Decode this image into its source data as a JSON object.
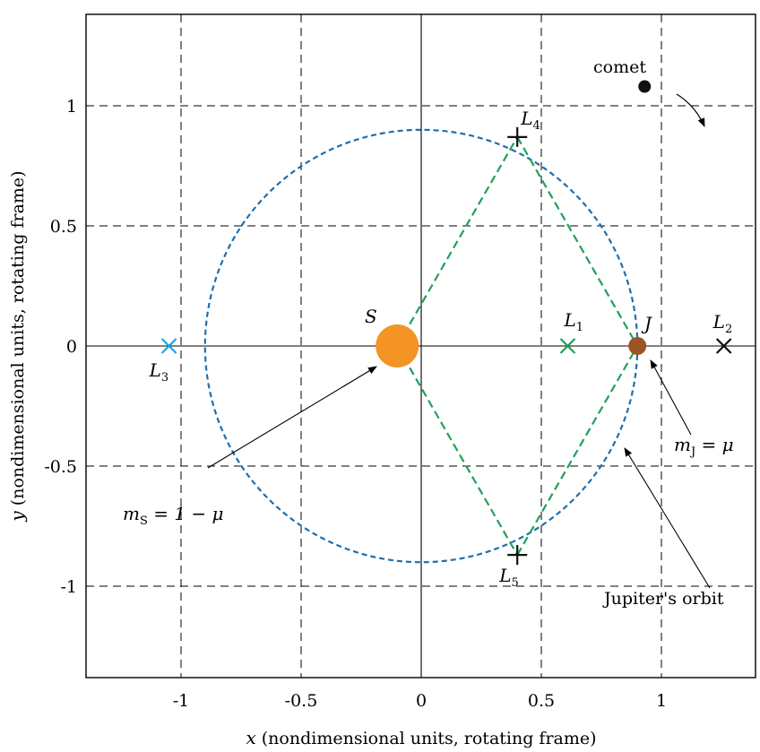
{
  "chart_data": {
    "type": "scatter",
    "xlim": [
      -1.4,
      1.4
    ],
    "ylim": [
      -1.4,
      1.4
    ],
    "grid": true,
    "x_ticks": [
      -1,
      -0.5,
      0,
      0.5,
      1
    ],
    "y_ticks": [
      -1,
      -0.5,
      0,
      0.5,
      1
    ],
    "x_tick_labels": [
      "-1",
      "-0.5",
      "0",
      "0.5",
      "1"
    ],
    "y_tick_labels": [
      "-1",
      "-0.5",
      "0",
      "0.5",
      "1"
    ],
    "xlabel": {
      "var": "x",
      "text": " (nondimensional units, rotating frame)"
    },
    "ylabel": {
      "var": "y",
      "text": " (nondimensional units, rotating frame)"
    },
    "orbit": {
      "label": "Jupiter's orbit",
      "center": [
        0,
        0
      ],
      "radius": 0.9,
      "color": "#1f6fad"
    },
    "sun": {
      "label": "S",
      "x": -0.1,
      "y": 0,
      "color": "#f39424",
      "mass_label": "m",
      "mass_sub": "S",
      "mass_rhs": " = 1 − μ"
    },
    "jupiter": {
      "label": "J",
      "x": 0.9,
      "y": 0,
      "color": "#9b5425",
      "mass_label": "m",
      "mass_sub": "J",
      "mass_rhs": " = μ"
    },
    "comet": {
      "label": "comet",
      "x": 0.93,
      "y": 1.08,
      "color": "#111111"
    },
    "lagrange_points": [
      {
        "name": "L",
        "sub": "1",
        "x": 0.61,
        "y": 0,
        "marker": "x",
        "color": "#21a05a"
      },
      {
        "name": "L",
        "sub": "2",
        "x": 1.26,
        "y": 0,
        "marker": "x",
        "color": "#111111"
      },
      {
        "name": "L",
        "sub": "3",
        "x": -1.05,
        "y": 0,
        "marker": "x",
        "color": "#1aa3e8"
      },
      {
        "name": "L",
        "sub": "4",
        "x": 0.4,
        "y": 0.87,
        "marker": "+",
        "color": "#111111"
      },
      {
        "name": "L",
        "sub": "5",
        "x": 0.4,
        "y": -0.87,
        "marker": "+",
        "color": "#111111"
      }
    ],
    "triangle_color": "#21a05a"
  }
}
